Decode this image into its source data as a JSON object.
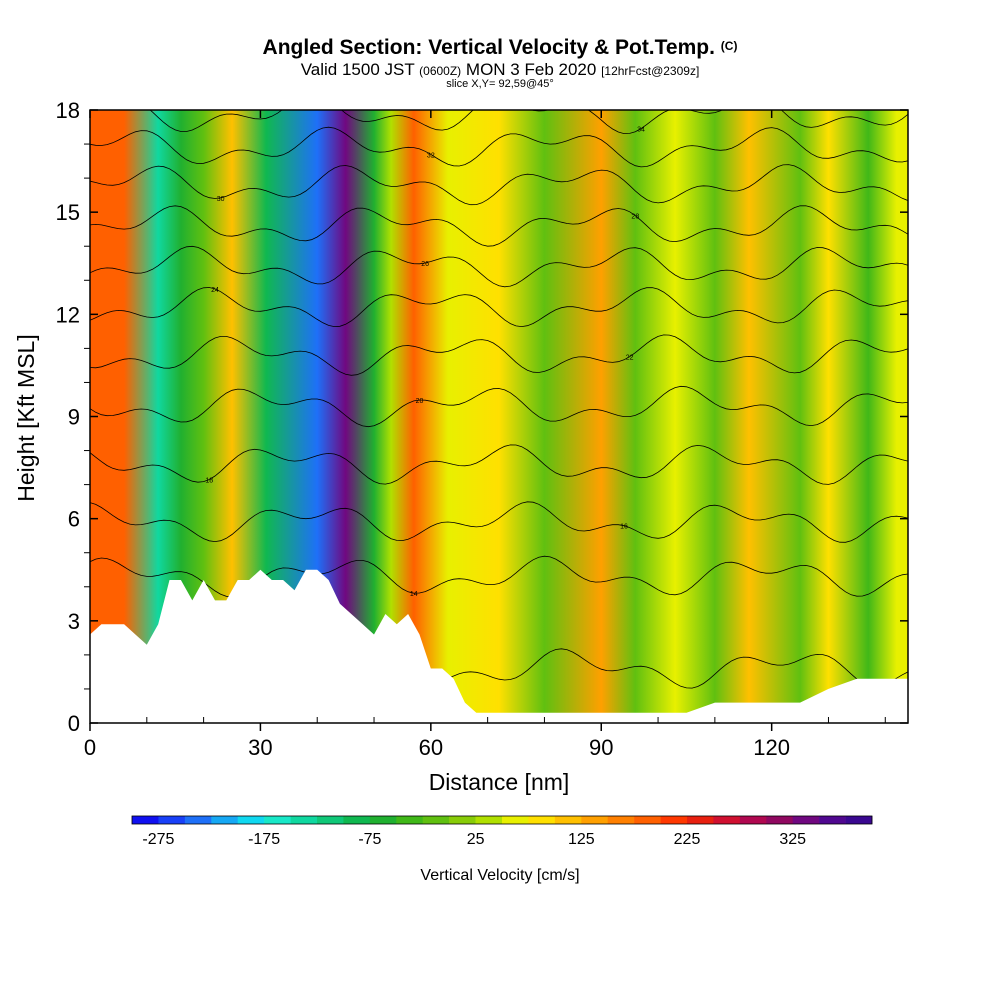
{
  "header": {
    "title": "Angled Section: Vertical Velocity & Pot.Temp.",
    "title_unit": "(C)",
    "valid_prefix": "Valid 1500 JST",
    "valid_utc": "(0600Z)",
    "valid_date": "MON 3 Feb 2020",
    "forecast": "[12hrFcst@2309z]",
    "slice": "slice X,Y= 92,59@45°"
  },
  "chart_data": {
    "type": "heatmap",
    "xlabel": "Distance [nm]",
    "ylabel": "Height [Kft MSL]",
    "xlim": [
      0,
      144
    ],
    "ylim": [
      0,
      18
    ],
    "x_ticks": [
      "0",
      "30",
      "60",
      "90",
      "120"
    ],
    "x_tick_values": [
      0,
      30,
      60,
      90,
      120
    ],
    "y_ticks": [
      "0",
      "3",
      "6",
      "9",
      "12",
      "15",
      "18"
    ],
    "y_tick_values": [
      0,
      3,
      6,
      9,
      12,
      15,
      18
    ],
    "colorbar": {
      "label": "Vertical Velocity [cm/s]",
      "tick_labels": [
        "-275",
        "-175",
        "-75",
        "25",
        "125",
        "225",
        "325"
      ],
      "levels": [
        -300,
        -275,
        -250,
        -225,
        -200,
        -175,
        -150,
        -125,
        -100,
        -75,
        -50,
        -25,
        0,
        25,
        50,
        75,
        100,
        125,
        150,
        175,
        200,
        225,
        250,
        275,
        300,
        325,
        350,
        375,
        400
      ],
      "colors": [
        "#1010f0",
        "#1840f8",
        "#1e70f8",
        "#16a8f4",
        "#10d8f0",
        "#18e8c8",
        "#10d8a0",
        "#10c878",
        "#10b850",
        "#20b030",
        "#40b818",
        "#60c010",
        "#88cc08",
        "#b0e000",
        "#e8f000",
        "#ffe000",
        "#ffc000",
        "#ffa000",
        "#ff8000",
        "#ff6000",
        "#ff3800",
        "#e82010",
        "#d01030",
        "#b00850",
        "#900860",
        "#700880",
        "#500890",
        "#3a0890"
      ]
    },
    "vertical_velocity_bands_cm_s": [
      {
        "x_nm": 6,
        "w_cm_s": 175
      },
      {
        "x_nm": 12,
        "w_cm_s": -150
      },
      {
        "x_nm": 16,
        "w_cm_s": -75
      },
      {
        "x_nm": 20,
        "w_cm_s": -25
      },
      {
        "x_nm": 25,
        "w_cm_s": 100
      },
      {
        "x_nm": 31,
        "w_cm_s": -100
      },
      {
        "x_nm": 40,
        "w_cm_s": -250
      },
      {
        "x_nm": 45,
        "w_cm_s": 325
      },
      {
        "x_nm": 50,
        "w_cm_s": -75
      },
      {
        "x_nm": 53,
        "w_cm_s": 25
      },
      {
        "x_nm": 57,
        "w_cm_s": 175
      },
      {
        "x_nm": 63,
        "w_cm_s": 50
      },
      {
        "x_nm": 72,
        "w_cm_s": 75
      },
      {
        "x_nm": 80,
        "w_cm_s": -25
      },
      {
        "x_nm": 90,
        "w_cm_s": 125
      },
      {
        "x_nm": 96,
        "w_cm_s": -25
      },
      {
        "x_nm": 103,
        "w_cm_s": 50
      },
      {
        "x_nm": 110,
        "w_cm_s": -25
      },
      {
        "x_nm": 116,
        "w_cm_s": 100
      },
      {
        "x_nm": 125,
        "w_cm_s": -25
      },
      {
        "x_nm": 130,
        "w_cm_s": 75
      },
      {
        "x_nm": 137,
        "w_cm_s": -50
      },
      {
        "x_nm": 142,
        "w_cm_s": 50
      }
    ],
    "terrain_top_kft": [
      [
        0,
        2.6
      ],
      [
        2,
        2.9
      ],
      [
        4,
        2.9
      ],
      [
        6,
        2.9
      ],
      [
        8,
        2.6
      ],
      [
        10,
        2.3
      ],
      [
        12,
        2.9
      ],
      [
        14,
        4.2
      ],
      [
        16,
        4.2
      ],
      [
        18,
        3.6
      ],
      [
        20,
        4.2
      ],
      [
        22,
        3.6
      ],
      [
        24,
        3.6
      ],
      [
        26,
        4.2
      ],
      [
        28,
        4.2
      ],
      [
        30,
        4.5
      ],
      [
        32,
        4.2
      ],
      [
        34,
        4.2
      ],
      [
        36,
        3.9
      ],
      [
        38,
        4.5
      ],
      [
        40,
        4.5
      ],
      [
        42,
        4.2
      ],
      [
        44,
        3.5
      ],
      [
        46,
        3.2
      ],
      [
        48,
        2.9
      ],
      [
        50,
        2.6
      ],
      [
        52,
        3.2
      ],
      [
        54,
        2.9
      ],
      [
        56,
        3.2
      ],
      [
        58,
        2.6
      ],
      [
        60,
        1.6
      ],
      [
        62,
        1.6
      ],
      [
        64,
        1.3
      ],
      [
        66,
        0.6
      ],
      [
        68,
        0.3
      ],
      [
        70,
        0.3
      ],
      [
        75,
        0.3
      ],
      [
        80,
        0.3
      ],
      [
        85,
        0.3
      ],
      [
        90,
        0.3
      ],
      [
        95,
        0.3
      ],
      [
        100,
        0.3
      ],
      [
        105,
        0.3
      ],
      [
        110,
        0.6
      ],
      [
        115,
        0.6
      ],
      [
        120,
        0.6
      ],
      [
        125,
        0.6
      ],
      [
        130,
        1.0
      ],
      [
        135,
        1.3
      ],
      [
        140,
        1.3
      ],
      [
        144,
        1.3
      ]
    ],
    "theta_contours": [
      {
        "label": "12",
        "base_kft": 1.6
      },
      {
        "label": "14",
        "base_kft": 4.3
      },
      {
        "label": "16",
        "base_kft": 5.9
      },
      {
        "label": "18",
        "base_kft": 7.6
      },
      {
        "label": "20",
        "base_kft": 9.3
      },
      {
        "label": "22",
        "base_kft": 10.8
      },
      {
        "label": "24",
        "base_kft": 12.2
      },
      {
        "label": "26",
        "base_kft": 13.4
      },
      {
        "label": "28",
        "base_kft": 14.6
      },
      {
        "label": "30",
        "base_kft": 15.8
      },
      {
        "label": "32",
        "base_kft": 16.9
      },
      {
        "label": "34",
        "base_kft": 17.9
      }
    ]
  }
}
